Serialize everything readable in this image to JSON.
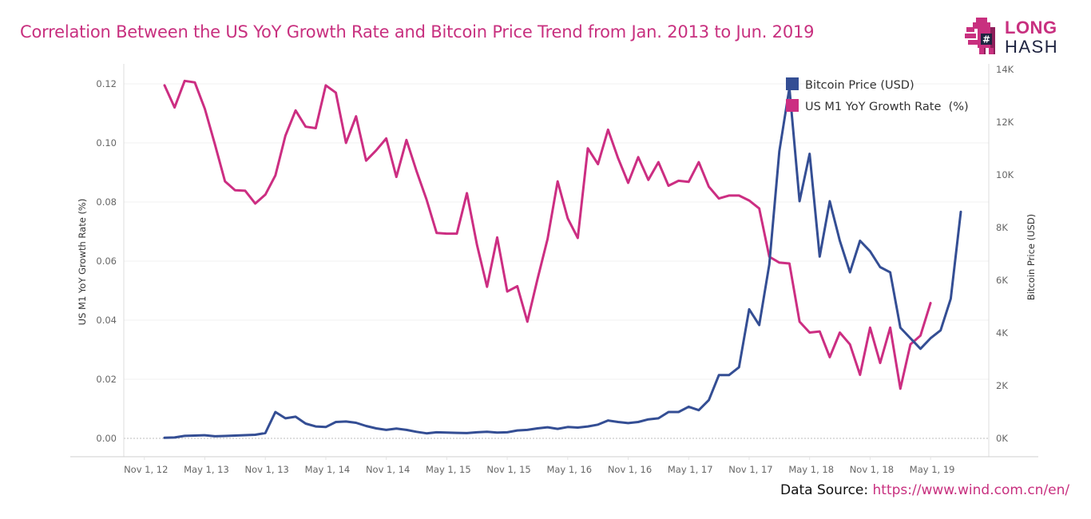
{
  "title": "Correlation Between the US YoY Growth Rate and Bitcoin Price Trend from Jan. 2013 to Jun. 2019",
  "logo": {
    "line1": "LONG",
    "line2": "HASH"
  },
  "source": {
    "label": "Data Source:",
    "link": "https://www.wind.com.cn/en/"
  },
  "colors": {
    "bitcoin": "#344e94",
    "m1": "#cc2e82",
    "title": "#c8307f"
  },
  "chart_data": {
    "type": "line",
    "title": "Correlation Between the US YoY Growth Rate and Bitcoin Price Trend from Jan. 2013 to Jun. 2019",
    "xlabel": "",
    "x_start": "2013-01",
    "x_end": "2019-06",
    "x_frequency": "monthly",
    "x_ticks": [
      "Nov 1, 12",
      "May 1, 13",
      "Nov 1, 13",
      "May 1, 14",
      "Nov 1, 14",
      "May 1, 15",
      "Nov 1, 15",
      "May 1, 16",
      "Nov 1, 16",
      "May 1, 17",
      "Nov 1, 17",
      "May 1, 18",
      "Nov 1, 18",
      "May 1, 19"
    ],
    "y_left": {
      "label": "US M1 YoY Growth Rate  (%)",
      "ticks": [
        "0.00",
        "0.02",
        "0.04",
        "0.06",
        "0.08",
        "0.10",
        "0.12"
      ],
      "range": [
        -0.006,
        0.125
      ]
    },
    "y_right": {
      "label": "Bitcoin Price (USD)",
      "ticks": [
        "0K",
        "2K",
        "4K",
        "6K",
        "8K",
        "10K",
        "12K",
        "14K"
      ],
      "range": [
        -700,
        14000
      ]
    },
    "legend": {
      "position": "top-right",
      "entries": [
        "Bitcoin Price (USD)",
        "US M1 YoY Growth Rate  (%)"
      ]
    },
    "grid": true,
    "series": [
      {
        "name": "Bitcoin Price (USD)",
        "axis": "right",
        "values": [
          20,
          33,
          93,
          105,
          117,
          80,
          90,
          105,
          120,
          135,
          200,
          1000,
          760,
          820,
          560,
          450,
          430,
          620,
          640,
          590,
          470,
          380,
          320,
          370,
          320,
          250,
          190,
          230,
          220,
          210,
          200,
          230,
          250,
          220,
          230,
          300,
          320,
          380,
          420,
          360,
          430,
          410,
          450,
          520,
          680,
          620,
          580,
          620,
          720,
          760,
          1000,
          1000,
          1200,
          1070,
          1450,
          2400,
          2400,
          2700,
          4900,
          4300,
          6600,
          10900,
          13300,
          9000,
          10800,
          6900,
          9000,
          7500,
          6300,
          7500,
          7100,
          6500,
          6300,
          4200,
          3800,
          3400,
          3800,
          4100,
          5300,
          8600
        ]
      },
      {
        "name": "US M1 YoY Growth Rate  (%)",
        "axis": "left",
        "values": [
          0.1195,
          0.112,
          0.121,
          0.1205,
          0.1115,
          0.0995,
          0.087,
          0.084,
          0.0838,
          0.0795,
          0.0825,
          0.089,
          0.1025,
          0.111,
          0.1055,
          0.105,
          0.1195,
          0.117,
          0.1,
          0.109,
          0.094,
          0.0975,
          0.1015,
          0.0885,
          0.101,
          0.0905,
          0.0808,
          0.0695,
          0.0693,
          0.0693,
          0.083,
          0.0655,
          0.0513,
          0.068,
          0.0497,
          0.0515,
          0.0395,
          0.0538,
          0.0675,
          0.087,
          0.0745,
          0.0678,
          0.0982,
          0.0928,
          0.1045,
          0.0948,
          0.0865,
          0.0952,
          0.0875,
          0.0935,
          0.0855,
          0.0872,
          0.0868,
          0.0935,
          0.0852,
          0.0812,
          0.0822,
          0.0822,
          0.0805,
          0.0778,
          0.0615,
          0.0595,
          0.0592,
          0.0395,
          0.0358,
          0.0362,
          0.0275,
          0.0358,
          0.0318,
          0.0215,
          0.0375,
          0.0255,
          0.0375,
          0.0168,
          0.0318,
          0.0348,
          0.0458
        ]
      }
    ]
  }
}
